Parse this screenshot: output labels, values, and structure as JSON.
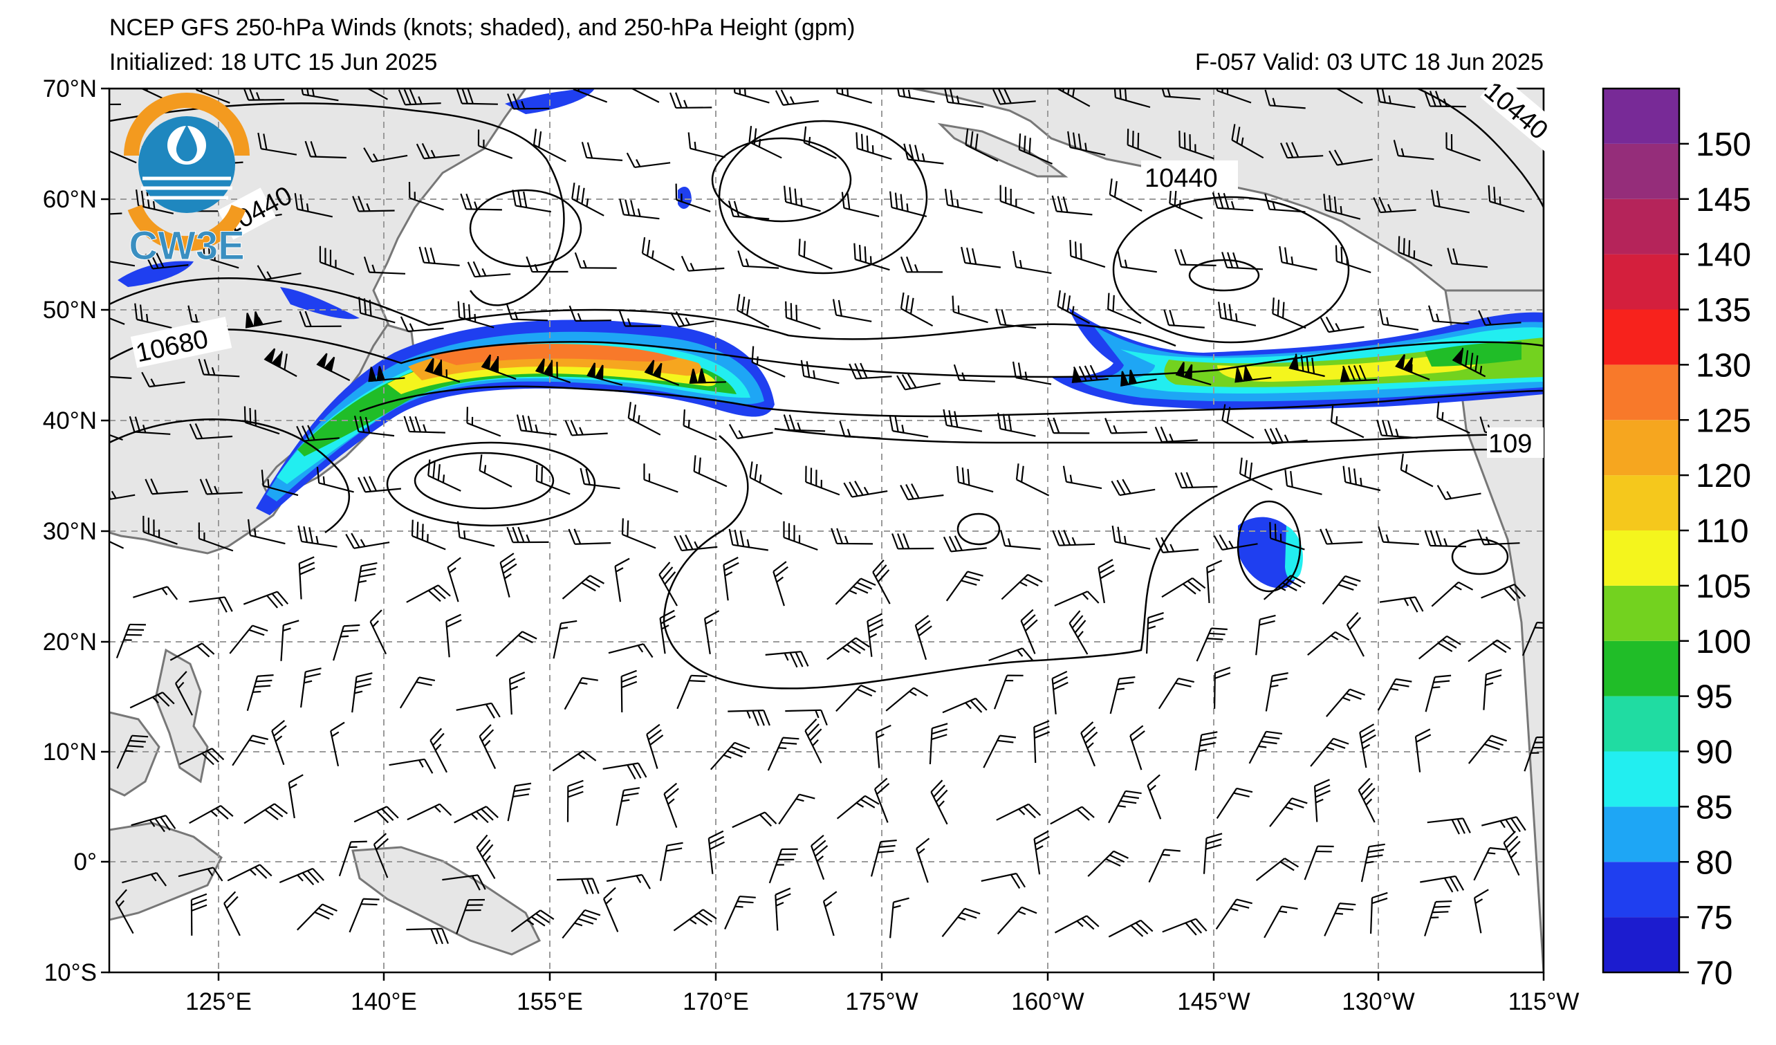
{
  "header": {
    "title": "NCEP GFS 250-hPa Winds (knots; shaded), and 250-hPa Height (gpm)",
    "initialized": "Initialized: 18 UTC 15 Jun 2025",
    "valid": "F-057  Valid: 03 UTC 18 Jun 2025"
  },
  "logo": {
    "text": "CW3E",
    "colors": {
      "orange": "#f39a1f",
      "blue": "#1f87bf",
      "dark": "#1f5b8f"
    }
  },
  "map": {
    "lat_labels": [
      "70°N",
      "60°N",
      "50°N",
      "40°N",
      "30°N",
      "20°N",
      "10°N",
      "0°",
      "10°S"
    ],
    "lon_labels": [
      "125°E",
      "140°E",
      "155°E",
      "170°E",
      "175°W",
      "160°W",
      "145°W",
      "130°W",
      "115°W"
    ],
    "contour_labels": [
      "10440",
      "10440",
      "10680",
      "10440",
      "109"
    ],
    "land_color": "#e6e6e6",
    "coast_color": "#777777",
    "grid_color": "#9a9a9a"
  },
  "colorbar": {
    "ticks": [
      "70",
      "75",
      "80",
      "85",
      "90",
      "95",
      "100",
      "105",
      "110",
      "120",
      "125",
      "130",
      "135",
      "140",
      "145",
      "150"
    ],
    "colors": [
      "#1c1ccf",
      "#1f3ff0",
      "#1ea6f5",
      "#22eef0",
      "#20dca2",
      "#20bd28",
      "#73d21f",
      "#f4f51d",
      "#f5c81c",
      "#f6a61f",
      "#f8792a",
      "#f7221c",
      "#d41f3d",
      "#b5245a",
      "#952d7a",
      "#782a97"
    ]
  }
}
